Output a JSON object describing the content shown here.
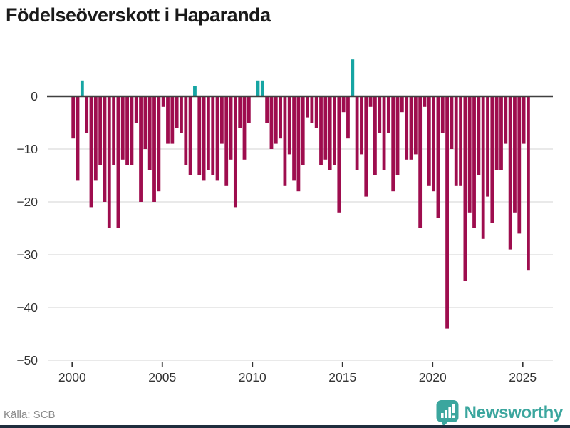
{
  "title": "Födelseöverskott i Haparanda",
  "source": "Källa: SCB",
  "brand": {
    "name": "Newsworthy"
  },
  "colors": {
    "negative_bar": "#9e0d4e",
    "positive_bar": "#16a5a3",
    "zero_line": "#404040",
    "gridline": "#e2e2e2",
    "axis_text": "#333333",
    "title_text": "#1a1a1a",
    "source_text": "#8a8a8a",
    "brand_teal": "#3ba69e",
    "bottom_strip": "#1f2d3d"
  },
  "chart_data": {
    "type": "bar",
    "title": "Födelseöverskott i Haparanda",
    "frequency": "quarterly",
    "start_year": 2000,
    "start_quarter": 1,
    "values": [
      -8,
      -16,
      3,
      -7,
      -21,
      -16,
      -13,
      -20,
      -25,
      -13,
      -25,
      -12,
      -13,
      -13,
      -5,
      -20,
      -10,
      -14,
      -20,
      -18,
      -2,
      -9,
      -9,
      -6,
      -7,
      -13,
      -15,
      2,
      -15,
      -16,
      -14,
      -15,
      -16,
      -9,
      -17,
      -12,
      -21,
      -6,
      -12,
      -5,
      0,
      3,
      3,
      -5,
      -10,
      -9,
      -8,
      -17,
      -11,
      -16,
      -18,
      -13,
      -4,
      -5,
      -6,
      -13,
      -12,
      -14,
      -13,
      -22,
      -3,
      -8,
      7,
      -14,
      -11,
      -19,
      -2,
      -15,
      -7,
      -14,
      -7,
      -18,
      -15,
      -3,
      -12,
      -12,
      -11,
      -25,
      -2,
      -17,
      -18,
      -23,
      -7,
      -44,
      -10,
      -17,
      -17,
      -35,
      -22,
      -25,
      -15,
      -27,
      -19,
      -24,
      -14,
      -14,
      -9,
      -29,
      -22,
      -26,
      -9,
      -33
    ],
    "ylim": [
      -50,
      8
    ],
    "y_ticks": [
      0,
      -10,
      -20,
      -30,
      -40,
      -50
    ],
    "y_tick_labels": [
      "0",
      "−10",
      "−20",
      "−30",
      "−40",
      "−50"
    ],
    "x_ticks": [
      2000,
      2005,
      2010,
      2015,
      2020,
      2025
    ],
    "x_tick_labels": [
      "2000",
      "2005",
      "2010",
      "2015",
      "2020",
      "2025"
    ],
    "grid": true,
    "legend": false
  }
}
